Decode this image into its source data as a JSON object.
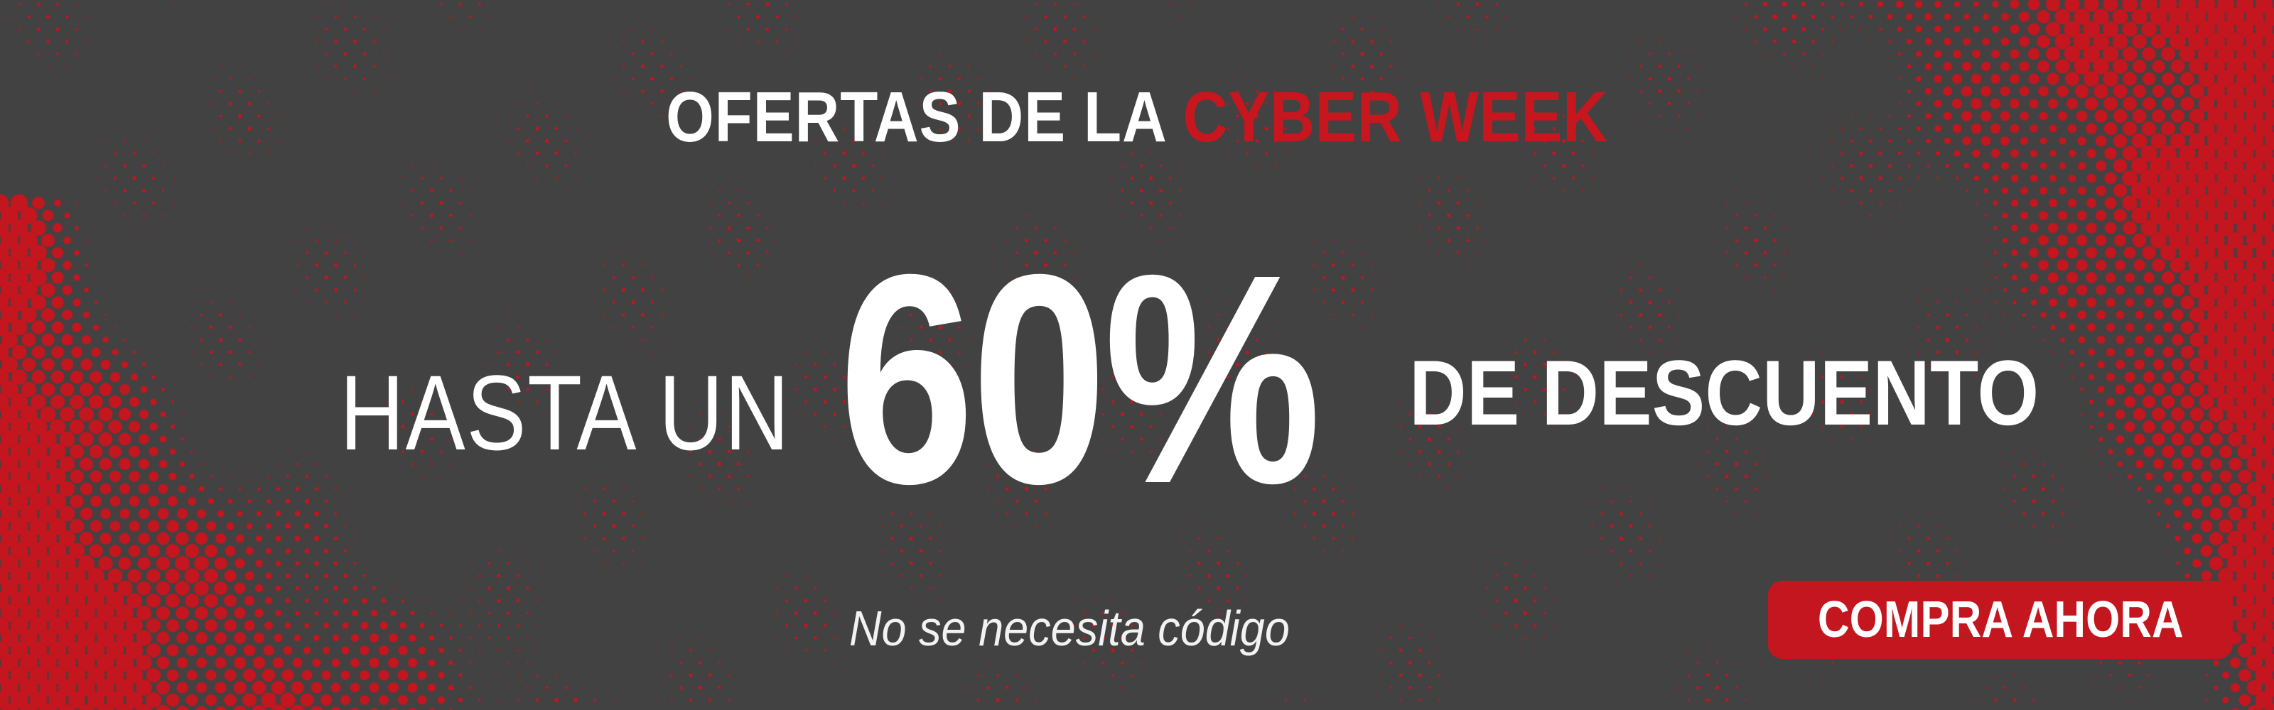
{
  "colors": {
    "background": "#424242",
    "accent": "#c4161f",
    "text": "#ffffff"
  },
  "headline": {
    "prefix": "OFERTAS DE LA ",
    "highlight": "CYBER WEEK"
  },
  "offer": {
    "lead": "HASTA UN",
    "value": "60%",
    "trail": "DE DESCUENTO"
  },
  "note": "No se necesita código",
  "cta": {
    "label": "COMPRA AHORA"
  }
}
